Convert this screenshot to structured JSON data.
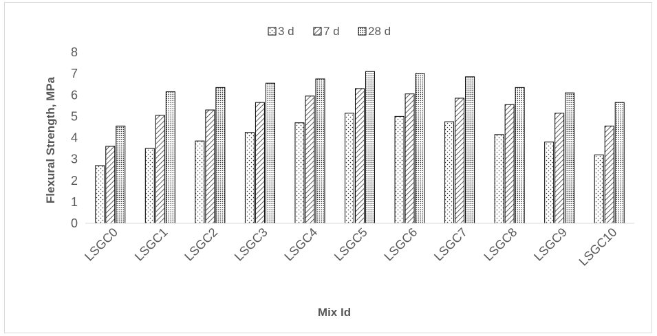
{
  "chart_data": {
    "type": "bar",
    "title": "",
    "xlabel": "Mix Id",
    "ylabel": "Flexural Strength, MPa",
    "ylim": [
      0,
      8
    ],
    "yticks": [
      0,
      1,
      2,
      3,
      4,
      5,
      6,
      7,
      8
    ],
    "grid": false,
    "legend_position": "top",
    "categories": [
      "LSGC0",
      "LSGC1",
      "LSGC2",
      "LSGC3",
      "LSGC4",
      "LSGC5",
      "LSGC6",
      "LSGC7",
      "LSGC8",
      "LSGC9",
      "LSGC10"
    ],
    "series": [
      {
        "name": "3 d",
        "pattern": "dots",
        "values": [
          2.7,
          3.5,
          3.85,
          4.25,
          4.7,
          5.15,
          5.0,
          4.75,
          4.15,
          3.8,
          3.2
        ]
      },
      {
        "name": "7 d",
        "pattern": "diagonal-hatch",
        "values": [
          3.6,
          5.05,
          5.3,
          5.65,
          5.95,
          6.3,
          6.05,
          5.85,
          5.55,
          5.15,
          4.55
        ]
      },
      {
        "name": "28 d",
        "pattern": "dense-dots",
        "values": [
          4.55,
          6.15,
          6.35,
          6.55,
          6.75,
          7.1,
          7.0,
          6.85,
          6.35,
          6.1,
          5.65
        ]
      }
    ]
  }
}
